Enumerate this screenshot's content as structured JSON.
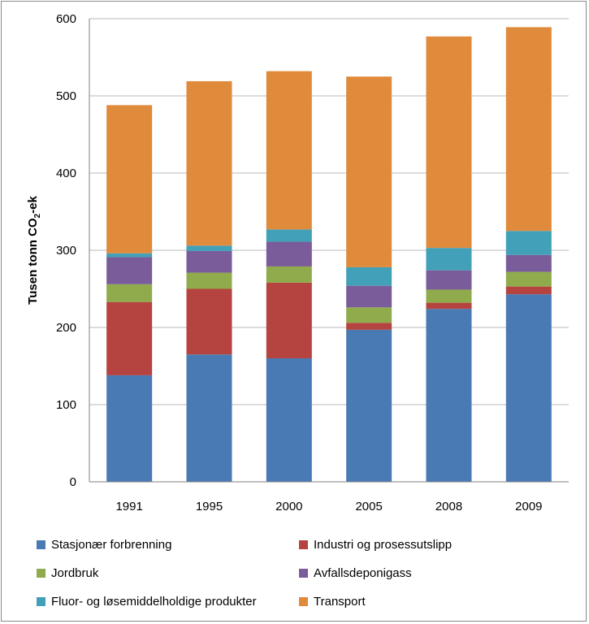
{
  "chart_data": {
    "type": "bar",
    "stacked": true,
    "categories": [
      "1991",
      "1995",
      "2000",
      "2005",
      "2008",
      "2009"
    ],
    "ylabel": "Tusen tonn CO₂-ek",
    "ylabel_parts": {
      "pre": "Tusen tonn CO",
      "sub": "2",
      "post": "-ek"
    },
    "ylim": [
      0,
      600
    ],
    "yticks": [
      "0",
      "100",
      "200",
      "300",
      "400",
      "500",
      "600"
    ],
    "grid": true,
    "legend_position": "bottom",
    "series": [
      {
        "name": "Stasjonær forbrenning",
        "color": "#4a7ab4",
        "values": [
          138,
          165,
          160,
          197,
          224,
          243
        ]
      },
      {
        "name": "Industri og prosessutslipp",
        "color": "#b5433f",
        "values": [
          95,
          85,
          98,
          9,
          8,
          10
        ]
      },
      {
        "name": "Jordbruk",
        "color": "#8fab4b",
        "values": [
          23,
          21,
          21,
          20,
          17,
          19
        ]
      },
      {
        "name": "Avfallsdeponigass",
        "color": "#7a5c9a",
        "values": [
          35,
          28,
          32,
          28,
          25,
          22
        ]
      },
      {
        "name": "Fluor- og løsemiddelholdige produkter",
        "color": "#42a0b8",
        "values": [
          5,
          7,
          16,
          24,
          29,
          31
        ]
      },
      {
        "name": "Transport",
        "color": "#e08a3c",
        "values": [
          192,
          213,
          205,
          247,
          274,
          264
        ]
      }
    ]
  }
}
